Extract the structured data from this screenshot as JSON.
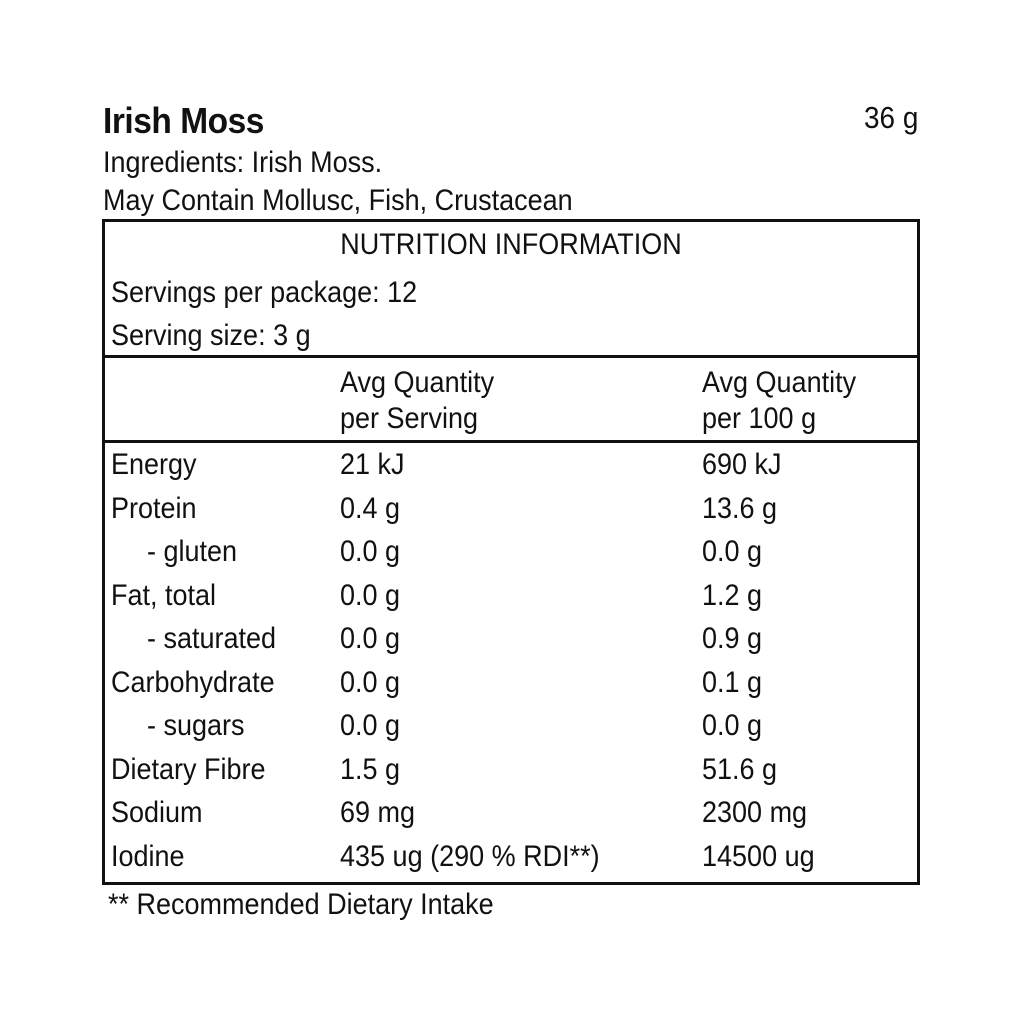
{
  "product": {
    "name": "Irish Moss",
    "net_weight": "36 g",
    "ingredients": "Ingredients: Irish Moss.",
    "allergen_note": "May Contain Mollusc, Fish, Crustacean"
  },
  "nutrition": {
    "title": "NUTRITION INFORMATION",
    "servings_per_package": "Servings per package: 12",
    "serving_size": "Serving size: 3 g",
    "headers": {
      "per_serving_line1": "Avg Quantity",
      "per_serving_line2": "per Serving",
      "per_100g_line1": "Avg Quantity",
      "per_100g_line2": "per 100 g"
    },
    "rows": [
      {
        "name": "Energy",
        "per_serving": "21 kJ",
        "per_100g": "690 kJ",
        "sub": false
      },
      {
        "name": "Protein",
        "per_serving": "0.4 g",
        "per_100g": "13.6 g",
        "sub": false
      },
      {
        "name": "- gluten",
        "per_serving": "0.0 g",
        "per_100g": "0.0 g",
        "sub": true
      },
      {
        "name": "Fat, total",
        "per_serving": "0.0 g",
        "per_100g": "1.2 g",
        "sub": false
      },
      {
        "name": "- saturated",
        "per_serving": "0.0 g",
        "per_100g": "0.9 g",
        "sub": true
      },
      {
        "name": "Carbohydrate",
        "per_serving": "0.0 g",
        "per_100g": "0.1 g",
        "sub": false
      },
      {
        "name": "- sugars",
        "per_serving": "0.0 g",
        "per_100g": "0.0 g",
        "sub": true
      },
      {
        "name": "Dietary Fibre",
        "per_serving": "1.5 g",
        "per_100g": "51.6 g",
        "sub": false
      },
      {
        "name": "Sodium",
        "per_serving": "69 mg",
        "per_100g": "2300 mg",
        "sub": false
      },
      {
        "name": "Iodine",
        "per_serving": "435 ug (290 % RDI**)",
        "per_100g": "14500 ug",
        "sub": false
      }
    ],
    "footnote": "** Recommended Dietary Intake"
  }
}
